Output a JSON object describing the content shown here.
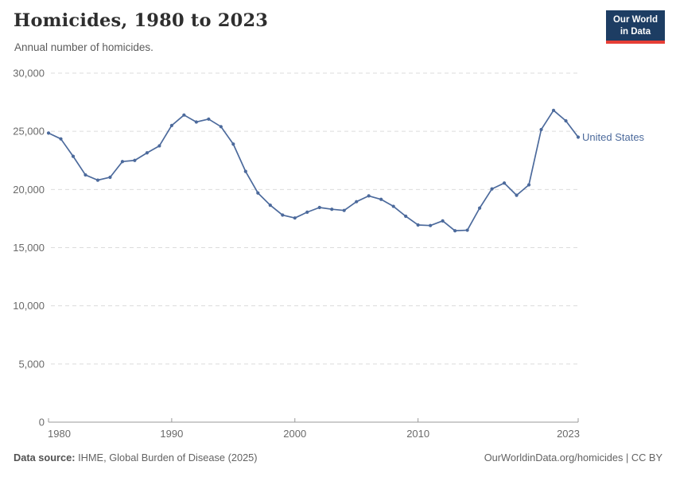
{
  "header": {
    "title": "Homicides, 1980 to 2023",
    "subtitle": "Annual number of homicides."
  },
  "logo": {
    "line1": "Our World",
    "line2": "in Data",
    "bg_color": "#1D3D63",
    "bar_color": "#E63E36"
  },
  "footer": {
    "source_label": "Data source:",
    "source_value": " IHME, Global Burden of Disease (2025)",
    "right": "OurWorldinData.org/homicides | CC BY"
  },
  "chart_data": {
    "type": "line",
    "title": "Homicides, 1980 to 2023",
    "subtitle": "Annual number of homicides.",
    "xlabel": "",
    "ylabel": "",
    "xlim": [
      1980,
      2023
    ],
    "ylim": [
      0,
      30000
    ],
    "grid": "horizontal-dashed",
    "legend_position": "end-of-line-label",
    "x": [
      1980,
      1981,
      1982,
      1983,
      1984,
      1985,
      1986,
      1987,
      1988,
      1989,
      1990,
      1991,
      1992,
      1993,
      1994,
      1995,
      1996,
      1997,
      1998,
      1999,
      2000,
      2001,
      2002,
      2003,
      2004,
      2005,
      2006,
      2007,
      2008,
      2009,
      2010,
      2011,
      2012,
      2013,
      2014,
      2015,
      2016,
      2017,
      2018,
      2019,
      2020,
      2021,
      2022,
      2023
    ],
    "series": [
      {
        "name": "United States",
        "color": "#4C6A9C",
        "values": [
          24850,
          24350,
          22850,
          21250,
          20800,
          21050,
          22400,
          22500,
          23150,
          23750,
          25500,
          26400,
          25800,
          26050,
          25400,
          23900,
          21550,
          19700,
          18650,
          17800,
          17550,
          18050,
          18450,
          18300,
          18200,
          18950,
          19450,
          19150,
          18550,
          17700,
          16950,
          16900,
          17300,
          16450,
          16500,
          18400,
          20050,
          20550,
          19500,
          20400,
          25150,
          26800,
          25900,
          24500
        ]
      }
    ],
    "y_ticks": [
      0,
      5000,
      10000,
      15000,
      20000,
      25000,
      30000
    ],
    "y_tick_labels": [
      "0",
      "5,000",
      "10,000",
      "15,000",
      "20,000",
      "25,000",
      "30,000"
    ],
    "x_ticks": [
      1980,
      1990,
      2000,
      2010,
      2023
    ],
    "x_tick_labels": [
      "1980",
      "1990",
      "2000",
      "2010",
      "2023"
    ],
    "gridline_color": "#dcdcdc",
    "axis_color": "#999999",
    "tick_label_color": "#6a6a6a"
  }
}
